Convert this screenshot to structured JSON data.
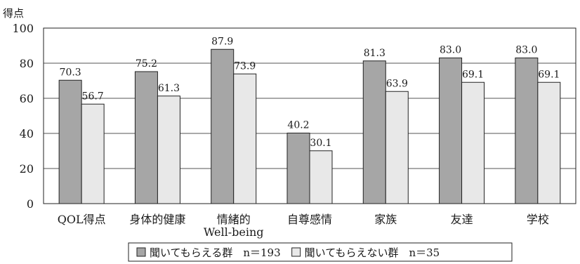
{
  "chart_data": {
    "type": "bar",
    "ylabel": "得点",
    "ylim": [
      0,
      100
    ],
    "yticks": [
      0,
      20,
      40,
      60,
      80,
      100
    ],
    "grid": true,
    "categories": [
      [
        "QOL得点"
      ],
      [
        "身体的健康"
      ],
      [
        "情緒的",
        "Well-being"
      ],
      [
        "自尊感情"
      ],
      [
        "家族"
      ],
      [
        "友達"
      ],
      [
        "学校"
      ]
    ],
    "series": [
      {
        "name": "聞いてもらえる群　n＝193",
        "color": "#a6a6a6",
        "values": [
          70.3,
          75.2,
          87.9,
          40.2,
          81.3,
          83.0,
          83.0
        ],
        "labels": [
          "70.3",
          "75.2",
          "87.9",
          "40.2",
          "81.3",
          "83.0",
          "83.0"
        ]
      },
      {
        "name": "聞いてもらえない群　n＝35",
        "color": "#e8e8e8",
        "values": [
          56.7,
          61.3,
          73.9,
          30.1,
          63.9,
          69.1,
          69.1
        ],
        "labels": [
          "56.7",
          "61.3",
          "73.9",
          "30.1",
          "63.9",
          "69.1",
          "69.1"
        ]
      }
    ],
    "legend_position": "bottom"
  }
}
